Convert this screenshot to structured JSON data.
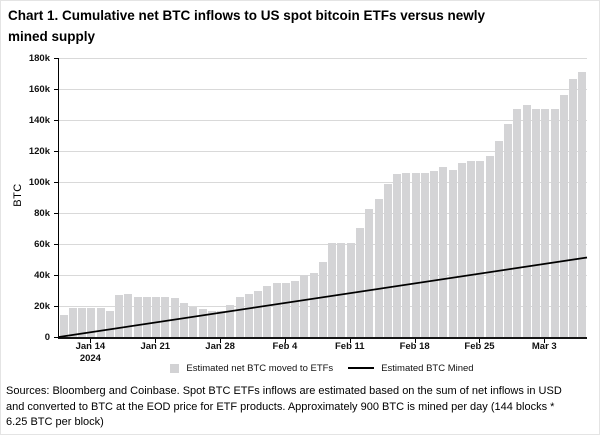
{
  "title_lines": [
    "Chart 1. Cumulative net BTC inflows to US spot bitcoin ETFs versus newly",
    "mined supply"
  ],
  "chart_data": {
    "type": "bar+line",
    "ylabel": "BTC",
    "ylim": [
      0,
      180000
    ],
    "ytick_step": 20000,
    "ytick_labels": [
      "0",
      "20k",
      "40k",
      "60k",
      "80k",
      "100k",
      "120k",
      "140k",
      "160k",
      "180k"
    ],
    "xtick_labels": [
      "Jan 14",
      "Jan 21",
      "Jan 28",
      "Feb 4",
      "Feb 11",
      "Feb 18",
      "Feb 25",
      "Mar 3"
    ],
    "xtick_sublabel": "2024",
    "grid": "horizontal",
    "legend_position": "bottom-center",
    "dates": [
      "Jan 11",
      "Jan 12",
      "Jan 13",
      "Jan 14",
      "Jan 15",
      "Jan 16",
      "Jan 17",
      "Jan 18",
      "Jan 19",
      "Jan 20",
      "Jan 21",
      "Jan 22",
      "Jan 23",
      "Jan 24",
      "Jan 25",
      "Jan 26",
      "Jan 27",
      "Jan 28",
      "Jan 29",
      "Jan 30",
      "Jan 31",
      "Feb 1",
      "Feb 2",
      "Feb 3",
      "Feb 4",
      "Feb 5",
      "Feb 6",
      "Feb 7",
      "Feb 8",
      "Feb 9",
      "Feb 10",
      "Feb 11",
      "Feb 12",
      "Feb 13",
      "Feb 14",
      "Feb 15",
      "Feb 16",
      "Feb 17",
      "Feb 18",
      "Feb 19",
      "Feb 20",
      "Feb 21",
      "Feb 22",
      "Feb 23",
      "Feb 24",
      "Feb 25",
      "Feb 26",
      "Feb 27",
      "Feb 28",
      "Feb 29",
      "Mar 1",
      "Mar 2",
      "Mar 3",
      "Mar 4",
      "Mar 5",
      "Mar 6",
      "Mar 7"
    ],
    "series": [
      {
        "name": "Estimated net BTC moved to ETFs",
        "type": "bar",
        "color": "#d4d4d6",
        "values": [
          14000,
          18500,
          18500,
          18500,
          18800,
          16500,
          27000,
          27500,
          25500,
          25500,
          25500,
          26000,
          25000,
          22000,
          19200,
          17800,
          17100,
          17100,
          20500,
          25700,
          28000,
          30000,
          33000,
          34800,
          34800,
          35900,
          40200,
          41200,
          48700,
          60500,
          60500,
          60500,
          70500,
          82900,
          89300,
          98900,
          105300,
          106000,
          106000,
          106000,
          107000,
          109600,
          107500,
          112200,
          113500,
          113500,
          117100,
          126500,
          137400,
          147400,
          149600,
          147000,
          147000,
          147000,
          156000,
          166300,
          171000
        ]
      },
      {
        "name": "Estimated BTC Mined",
        "type": "line",
        "color": "#000000",
        "per_day": 900,
        "start_value": 0
      }
    ]
  },
  "footer_lines": [
    "Sources: Bloomberg and Coinbase. Spot BTC ETFs inflows are estimated based on the sum of net inflows in USD",
    "and converted to BTC at the EOD price for ETF products. Approximately 900 BTC is mined per day (144 blocks *",
    "6.25 BTC per block)"
  ]
}
